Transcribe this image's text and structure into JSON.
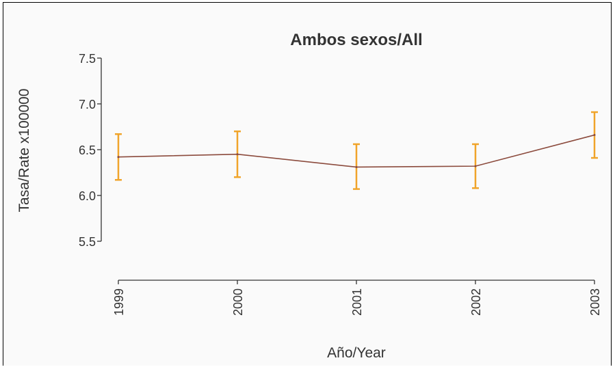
{
  "chart_data": {
    "type": "line",
    "title": "Ambos sexos/All",
    "xlabel": "Año/Year",
    "ylabel": "Tasa/Rate x100000",
    "categories": [
      "1999",
      "2000",
      "2001",
      "2002",
      "2003"
    ],
    "y_ticks": [
      "5.5",
      "6.0",
      "6.5",
      "7.0",
      "7.5"
    ],
    "ylim": [
      5.5,
      7.5
    ],
    "series": [
      {
        "values": [
          6.42,
          6.45,
          6.31,
          6.32,
          6.66
        ],
        "lower": [
          6.17,
          6.2,
          6.07,
          6.08,
          6.41
        ],
        "upper": [
          6.67,
          6.7,
          6.56,
          6.56,
          6.91
        ]
      }
    ],
    "colors": {
      "line": "#8b4a3c",
      "error_bar": "#f0a42a",
      "axis": "#333333"
    },
    "grid": false,
    "legend": "none"
  }
}
